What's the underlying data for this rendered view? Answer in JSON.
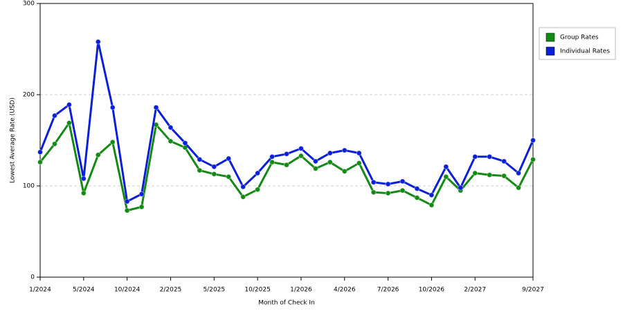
{
  "chart_data": {
    "type": "line",
    "xlabel": "Month of Check In",
    "ylabel": "Lowest Average Rate (USD)",
    "categories": [
      "1/2024",
      null,
      null,
      "5/2024",
      null,
      null,
      "10/2024",
      null,
      null,
      "2/2025",
      null,
      null,
      "5/2025",
      null,
      null,
      "10/2025",
      null,
      null,
      "1/2026",
      null,
      null,
      "4/2026",
      null,
      null,
      "7/2026",
      null,
      null,
      "10/2026",
      null,
      null,
      "2/2027",
      null,
      null,
      null,
      "9/2027"
    ],
    "series": [
      {
        "name": "Group Rates",
        "color": "#138a13",
        "values": [
          126,
          146,
          169,
          92,
          134,
          148,
          73,
          77,
          167,
          149,
          142,
          117,
          113,
          110,
          88,
          96,
          126,
          123,
          133,
          119,
          126,
          116,
          125,
          93,
          92,
          95,
          87,
          79,
          110,
          95,
          114,
          112,
          111,
          98,
          129
        ]
      },
      {
        "name": "Individual Rates",
        "color": "#0a1fd8",
        "values": [
          137,
          177,
          189,
          108,
          258,
          186,
          83,
          91,
          186,
          164,
          147,
          129,
          121,
          130,
          99,
          114,
          132,
          135,
          141,
          127,
          136,
          139,
          136,
          104,
          102,
          105,
          97,
          90,
          121,
          98,
          132,
          132,
          127,
          114,
          150
        ]
      }
    ],
    "ylim": [
      0,
      300
    ],
    "yticks": [
      0,
      100,
      200,
      300
    ],
    "grid": true
  }
}
